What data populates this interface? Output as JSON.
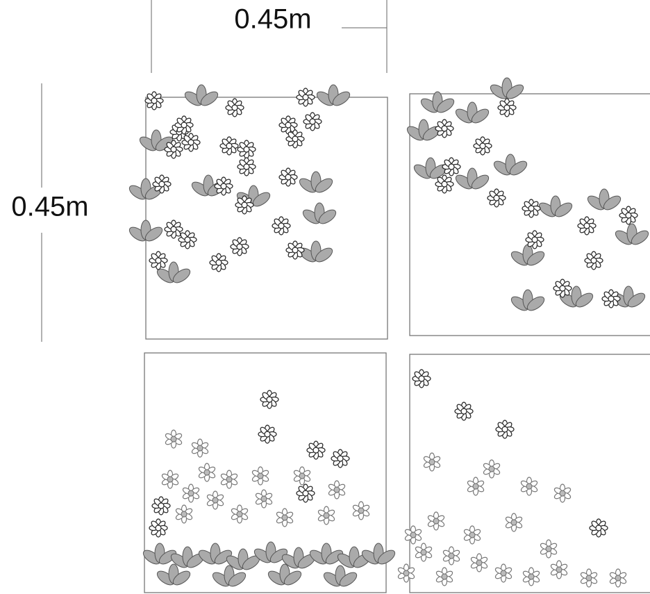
{
  "dimensions": {
    "width_label": "0.45m",
    "height_label": "0.45m"
  }
}
